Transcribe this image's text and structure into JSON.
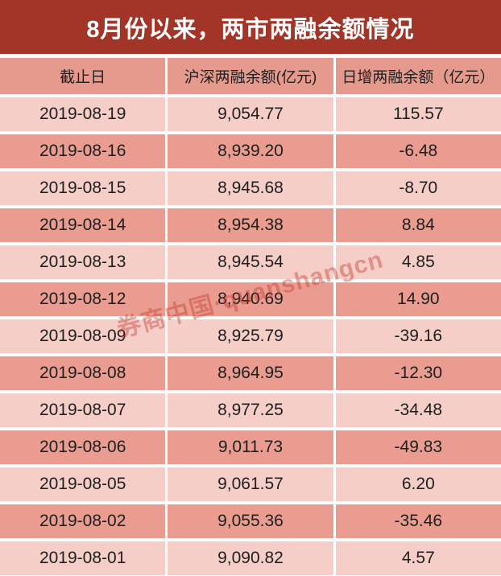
{
  "title": "8月份以来，两市两融余额情况",
  "table": {
    "columns": [
      "截止日",
      "沪深两融余额(亿元)",
      "日增两融余额（亿元）"
    ],
    "rows": [
      {
        "date": "2019-08-19",
        "balance": "9,054.77",
        "change": "115.57"
      },
      {
        "date": "2019-08-16",
        "balance": "8,939.20",
        "change": "-6.48"
      },
      {
        "date": "2019-08-15",
        "balance": "8,945.68",
        "change": "-8.70"
      },
      {
        "date": "2019-08-14",
        "balance": "8,954.38",
        "change": "8.84"
      },
      {
        "date": "2019-08-13",
        "balance": "8,945.54",
        "change": "4.85"
      },
      {
        "date": "2019-08-12",
        "balance": "8,940.69",
        "change": "14.90"
      },
      {
        "date": "2019-08-09",
        "balance": "8,925.79",
        "change": "-39.16"
      },
      {
        "date": "2019-08-08",
        "balance": "8,964.95",
        "change": "-12.30"
      },
      {
        "date": "2019-08-07",
        "balance": "8,977.25",
        "change": "-34.48"
      },
      {
        "date": "2019-08-06",
        "balance": "9,011.73",
        "change": "-49.83"
      },
      {
        "date": "2019-08-05",
        "balance": "9,061.57",
        "change": "6.20"
      },
      {
        "date": "2019-08-02",
        "balance": "9,055.36",
        "change": "-35.46"
      },
      {
        "date": "2019-08-01",
        "balance": "9,090.82",
        "change": "4.57"
      }
    ]
  },
  "watermark": {
    "text": "券商中国·quanshangcn"
  },
  "colors": {
    "title_bg": "#A23527",
    "title_text": "#FFFFFF",
    "header_bg": "#E69A8D",
    "row_light": "#F5CEC8",
    "row_dark": "#E99C8F",
    "gap": "#FFFFFF",
    "cell_text": "#1F1F1F",
    "watermark": "rgba(197,60,45,0.42)"
  },
  "chart_data": {
    "type": "table",
    "title": "8月份以来，两市两融余额情况",
    "columns": [
      "截止日",
      "沪深两融余额(亿元)",
      "日增两融余额（亿元）"
    ],
    "rows": [
      [
        "2019-08-19",
        9054.77,
        115.57
      ],
      [
        "2019-08-16",
        8939.2,
        -6.48
      ],
      [
        "2019-08-15",
        8945.68,
        -8.7
      ],
      [
        "2019-08-14",
        8954.38,
        8.84
      ],
      [
        "2019-08-13",
        8945.54,
        4.85
      ],
      [
        "2019-08-12",
        8940.69,
        14.9
      ],
      [
        "2019-08-09",
        8925.79,
        -39.16
      ],
      [
        "2019-08-08",
        8964.95,
        -12.3
      ],
      [
        "2019-08-07",
        8977.25,
        -34.48
      ],
      [
        "2019-08-06",
        9011.73,
        -49.83
      ],
      [
        "2019-08-05",
        9061.57,
        6.2
      ],
      [
        "2019-08-02",
        9055.36,
        -35.46
      ],
      [
        "2019-08-01",
        9090.82,
        4.57
      ]
    ]
  }
}
